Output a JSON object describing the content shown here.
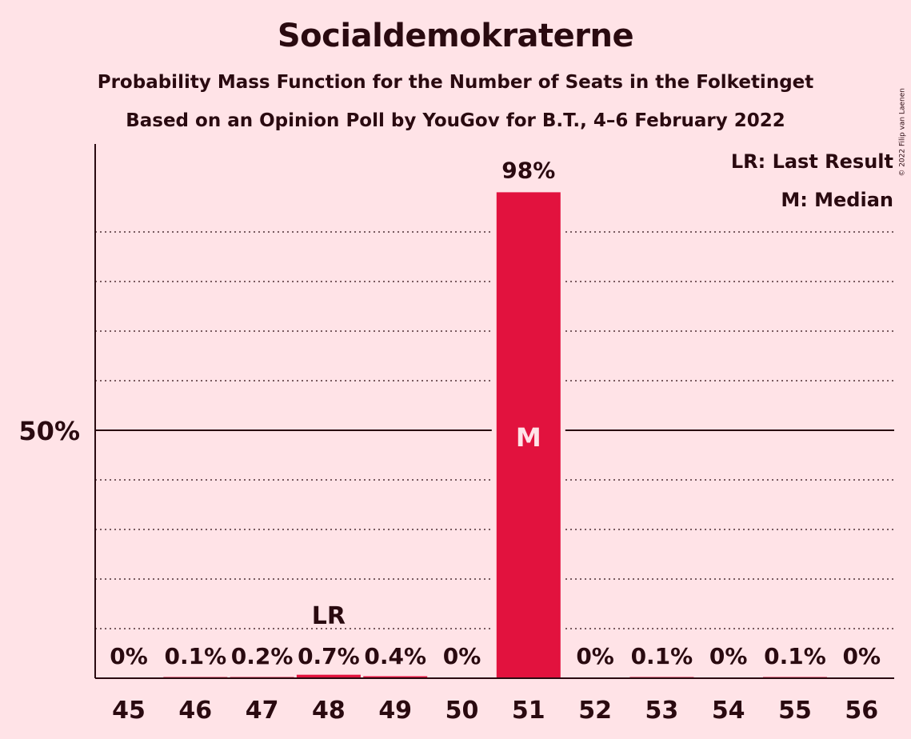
{
  "title": "Socialdemokraterne",
  "subtitle1": "Probability Mass Function for the Number of Seats in the Folketinget",
  "subtitle2": "Based on an Opinion Poll by YouGov for B.T., 4–6 February 2022",
  "copyright": "© 2022 Filip van Laenen",
  "legend": {
    "last_result": "LR: Last Result",
    "median": "M: Median"
  },
  "colors": {
    "background": "#FFE3E7",
    "bar": "#E2123E",
    "text": "#2A0A10"
  },
  "chart_data": {
    "type": "bar",
    "categories": [
      "45",
      "46",
      "47",
      "48",
      "49",
      "50",
      "51",
      "52",
      "53",
      "54",
      "55",
      "56"
    ],
    "values": [
      0,
      0.1,
      0.2,
      0.7,
      0.4,
      0,
      98,
      0,
      0.1,
      0,
      0.1,
      0
    ],
    "value_labels": [
      "0%",
      "0.1%",
      "0.2%",
      "0.7%",
      "0.4%",
      "0%",
      "98%",
      "0%",
      "0.1%",
      "0%",
      "0.1%",
      "0%"
    ],
    "ylim": [
      0,
      100
    ],
    "ytick_labels": [
      {
        "value": 50,
        "label": "50%"
      }
    ],
    "gridlines_dotted_every": 10,
    "last_result_category": "48",
    "last_result_label": "LR",
    "median_category": "51",
    "median_label": "M",
    "legend_placement": "top-right"
  }
}
